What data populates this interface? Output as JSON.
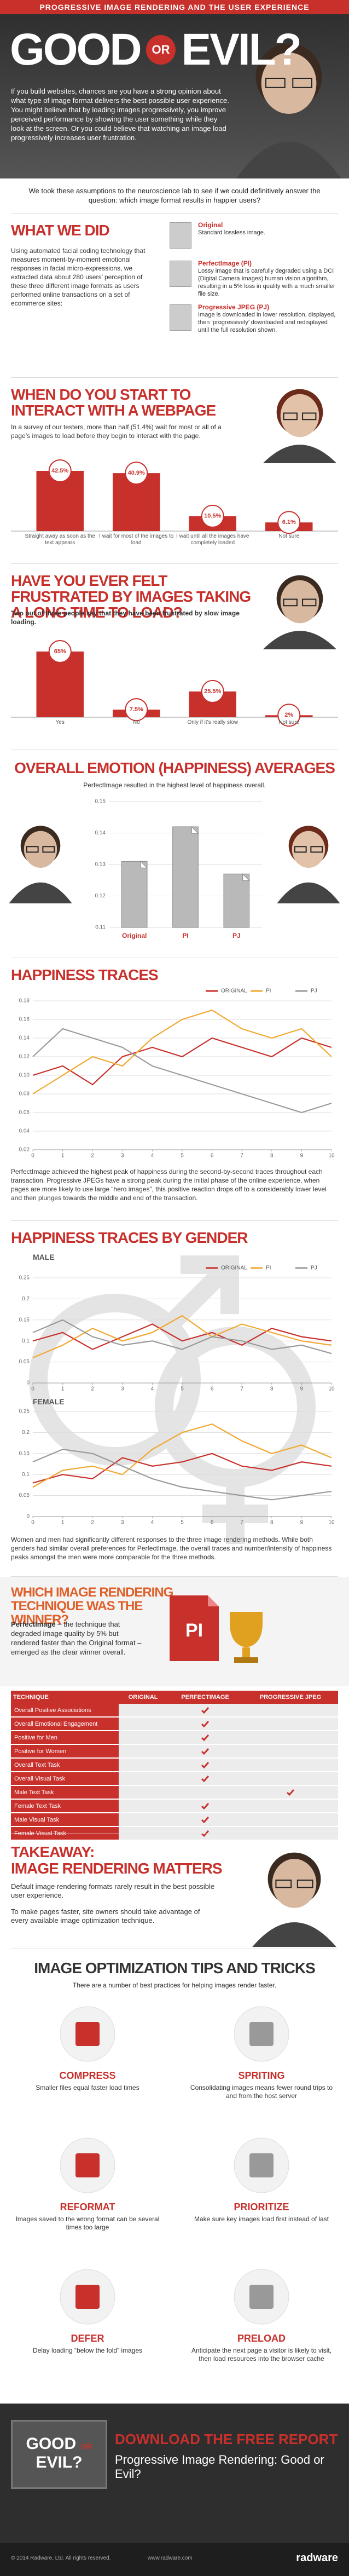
{
  "header": {
    "banner": "PROGRESSIVE IMAGE RENDERING AND THE USER EXPERIENCE",
    "title_good": "GOOD",
    "title_or": "OR",
    "title_evil": "EVIL?",
    "intro": "If you build websites, chances are you have a strong opinion about what type of image format delivers the best possible user experience. You might believe that by loading images progressively, you improve perceived performance by showing the user something while they look at the screen. Or you could believe that watching an image load progressively increases user frustration."
  },
  "lead": "We took these assumptions to the neuroscience lab to see if we could definitively answer the question: which image format results in happier users?",
  "what_we_did": {
    "heading": "WHAT WE DID",
    "text": "Using automated facial coding technology that measures moment-by-moment emotional responses in facial micro-expressions, we extracted data about 280 users’ perception of these three different image formats as users performed online transactions on a set of ecommerce sites:",
    "formats": [
      {
        "name": "Original",
        "description": "Standard lossless image."
      },
      {
        "name": "PerfectImage (PI)",
        "description": "Lossy image that is carefully degraded using a DCI (Digital Camera Images) human vision algorithm, resulting in a 5% loss in quality with a much smaller file size."
      },
      {
        "name": "Progressive JPEG (PJ)",
        "description": "Image is downloaded in lower resolution, displayed, then ‘progressively’ downloaded and redisplayed until the full resolution shown."
      }
    ]
  },
  "gender": {
    "heading": "HAPPINESS TRACES BY GENDER",
    "text": "Women and men had significantly different responses to the three image rendering methods. While both genders had similar overall preferences for PerfectImage, the overall traces and number/intensity of happiness peaks amongst the men were more comparable for the three methods."
  },
  "winner": {
    "heading": "WHICH IMAGE RENDERING TECHNIQUE WAS THE WINNER?",
    "name": "PerfectImage",
    "text": "– the technique that degraded image quality by 5% but rendered faster than the Original format – emerged as the clear winner overall.",
    "badge": "PI"
  },
  "table": {
    "header": [
      "TECHNIQUE",
      "ORIGINAL",
      "PERFECTIMAGE",
      "PROGRESSIVE JPEG"
    ],
    "rows": [
      {
        "label": "Overall Positive Associations",
        "checks": [
          false,
          true,
          false
        ]
      },
      {
        "label": "Overall Emotional Engagement",
        "checks": [
          false,
          true,
          false
        ]
      },
      {
        "label": "Positive for Men",
        "checks": [
          false,
          true,
          false
        ]
      },
      {
        "label": "Positive for Women",
        "checks": [
          false,
          true,
          false
        ]
      },
      {
        "label": "Overall Text Task",
        "checks": [
          false,
          true,
          false
        ]
      },
      {
        "label": "Overall Visual Task",
        "checks": [
          false,
          true,
          false
        ]
      },
      {
        "label": "Male Text Task",
        "checks": [
          false,
          false,
          true
        ]
      },
      {
        "label": "Female Text Task",
        "checks": [
          false,
          true,
          false
        ]
      },
      {
        "label": "Male Visual Task",
        "checks": [
          false,
          true,
          false
        ]
      },
      {
        "label": "Female Visual Task",
        "checks": [
          false,
          true,
          false
        ]
      }
    ]
  },
  "takeaway": {
    "heading_1": "TAKEAWAY:",
    "heading_2": "IMAGE RENDERING MATTERS",
    "text_1": "Default image rendering formats rarely result in the best possible user experience.",
    "text_2": "To make pages faster, site owners should take advantage of every available image optimization technique."
  },
  "tips": {
    "heading": "IMAGE OPTIMIZATION TIPS AND TRICKS",
    "subtitle": "There are a number of best practices for helping images render faster.",
    "items": [
      {
        "title": "COMPRESS",
        "text": "Smaller files equal faster load times"
      },
      {
        "title": "SPRITING",
        "text": "Consolidating images means fewer round trips to and from the host server"
      },
      {
        "title": "REFORMAT",
        "text": "Images saved to the wrong format can be several times too large"
      },
      {
        "title": "PRIORITIZE",
        "text": "Make sure key images load first instead of last"
      },
      {
        "title": "DEFER",
        "text": "Delay loading “below the fold” images"
      },
      {
        "title": "PRELOAD",
        "text": "Anticipate the next page a visitor is likely to visit, then load resources into the browser cache"
      }
    ]
  },
  "footer": {
    "cta": "DOWNLOAD THE FREE REPORT",
    "report": "Progressive Image Rendering: Good or Evil?",
    "copyright": "© 2014 Radware, Ltd. All rights reserved.",
    "url": "www.radware.com",
    "brand": "radware"
  },
  "chart_data": [
    {
      "type": "bar",
      "title": "WHEN DO YOU START TO INTERACT WITH A WEBPAGE",
      "subtitle": "In a survey of our testers, more than half (51.4%) wait for most or all of a page’s images to load before they begin to interact with the page.",
      "categories": [
        "Straight away as soon as the text appears",
        "I wait for most of the images to load",
        "I wait until all the images have completely loaded",
        "Not sure"
      ],
      "values": [
        42.5,
        40.9,
        10.5,
        6.1
      ],
      "value_labels": [
        "42.5%",
        "40.9%",
        "10.5%",
        "6.1%"
      ],
      "color": "#c8302c"
    },
    {
      "type": "bar",
      "title": "HAVE YOU EVER FELT FRUSTRATED BY IMAGES TAKING A LONG TIME TO LOAD?",
      "subtitle": "Two out of three people say that they have been frustrated by slow image loading.",
      "categories": [
        "Yes",
        "No",
        "Only if it’s really slow",
        "Not sure"
      ],
      "values": [
        65,
        7.5,
        25.5,
        2
      ],
      "value_labels": [
        "65%",
        "7.5%",
        "25.5%",
        "2%"
      ],
      "color": "#c8302c"
    },
    {
      "type": "bar",
      "title": "OVERALL EMOTION (HAPPINESS) AVERAGES",
      "subtitle": "PerfectImage resulted in the highest level of happiness overall.",
      "categories": [
        "Original",
        "PI",
        "PJ"
      ],
      "values": [
        0.131,
        0.142,
        0.127
      ],
      "color": "#b9b9b9",
      "ylim": [
        0.11,
        0.15
      ],
      "yticks": [
        0.11,
        0.12,
        0.13,
        0.14,
        0.15
      ],
      "grid": true
    },
    {
      "type": "line",
      "title": "HAPPINESS TRACES",
      "subtitle": "PerfectImage achieved the highest peak of happiness during the second-by-second traces throughout each transaction. Progressive JPEGs have a strong peak during the initial phase of the online experience, when pages are more likely to use large “hero images”, this positive reaction drops off to a considerably lower level and then plunges towards the middle and end of the transaction.",
      "x": [
        0,
        1,
        2,
        3,
        4,
        5,
        6,
        7,
        8,
        9,
        10
      ],
      "xlim": [
        0,
        10
      ],
      "xticks": [
        0,
        1,
        2,
        3,
        4,
        5,
        6,
        7,
        8,
        9,
        10
      ],
      "ylim": [
        0.02,
        0.18
      ],
      "yticks": [
        0.02,
        0.04,
        0.06,
        0.08,
        {
          "value": 0.1,
          "label": "0.10"
        },
        0.12,
        0.14,
        0.16,
        0.18
      ],
      "grid": true,
      "legend": "top-right",
      "series": [
        {
          "name": "ORIGINAL",
          "color": "#c8302c",
          "values": [
            0.1,
            0.11,
            0.09,
            0.12,
            0.13,
            0.12,
            0.14,
            0.13,
            0.12,
            0.14,
            0.13
          ]
        },
        {
          "name": "PI",
          "color": "#f0a830",
          "values": [
            0.08,
            0.1,
            0.12,
            0.11,
            0.14,
            0.16,
            0.17,
            0.15,
            0.14,
            0.15,
            0.12
          ]
        },
        {
          "name": "PJ",
          "color": "#9a9a9a",
          "values": [
            0.12,
            0.15,
            0.14,
            0.13,
            0.11,
            0.1,
            0.09,
            0.08,
            0.07,
            0.06,
            0.07
          ]
        }
      ]
    },
    {
      "type": "line",
      "title": "MALE",
      "x": [
        0,
        1,
        2,
        3,
        4,
        5,
        6,
        7,
        8,
        9,
        10
      ],
      "xlim": [
        0,
        10
      ],
      "xticks": [
        0,
        1,
        2,
        3,
        4,
        5,
        6,
        7,
        8,
        9,
        10
      ],
      "ylim": [
        0,
        0.25
      ],
      "yticks": [
        0,
        0.05,
        0.1,
        0.15,
        0.2,
        0.25
      ],
      "grid": true,
      "legend": "top-right",
      "series": [
        {
          "name": "ORIGINAL",
          "color": "#c8302c",
          "values": [
            0.1,
            0.12,
            0.08,
            0.11,
            0.14,
            0.1,
            0.12,
            0.09,
            0.13,
            0.11,
            0.1
          ]
        },
        {
          "name": "PI",
          "color": "#f0a830",
          "values": [
            0.06,
            0.09,
            0.13,
            0.1,
            0.12,
            0.16,
            0.11,
            0.14,
            0.12,
            0.1,
            0.09
          ]
        },
        {
          "name": "PJ",
          "color": "#9a9a9a",
          "values": [
            0.12,
            0.15,
            0.11,
            0.09,
            0.1,
            0.08,
            0.11,
            0.1,
            0.08,
            0.09,
            0.07
          ]
        }
      ]
    },
    {
      "type": "line",
      "title": "FEMALE",
      "x": [
        0,
        1,
        2,
        3,
        4,
        5,
        6,
        7,
        8,
        9,
        10
      ],
      "xlim": [
        0,
        10
      ],
      "xticks": [
        0,
        1,
        2,
        3,
        4,
        5,
        6,
        7,
        8,
        9,
        10
      ],
      "ylim": [
        0,
        0.25
      ],
      "yticks": [
        0,
        0.05,
        0.1,
        0.15,
        0.2,
        0.25
      ],
      "grid": true,
      "series": [
        {
          "color": "#c8302c",
          "values": [
            0.08,
            0.1,
            0.09,
            0.14,
            0.12,
            0.13,
            0.15,
            0.12,
            0.11,
            0.13,
            0.12
          ]
        },
        {
          "color": "#f0a830",
          "values": [
            0.07,
            0.11,
            0.12,
            0.1,
            0.16,
            0.2,
            0.22,
            0.18,
            0.15,
            0.17,
            0.14
          ]
        },
        {
          "color": "#9a9a9a",
          "values": [
            0.13,
            0.16,
            0.15,
            0.12,
            0.09,
            0.07,
            0.06,
            0.05,
            0.04,
            0.05,
            0.06
          ]
        }
      ]
    }
  ]
}
